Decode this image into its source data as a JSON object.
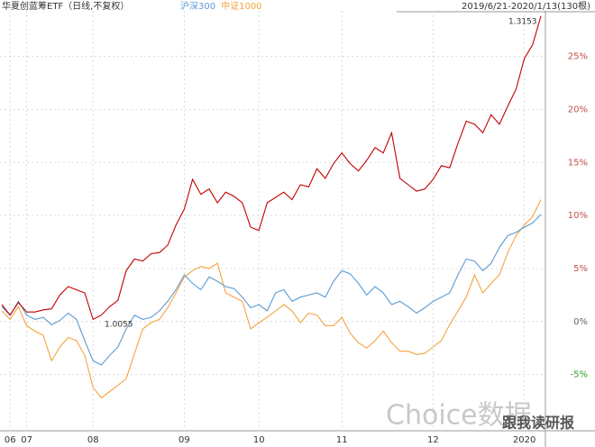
{
  "chart_data": {
    "type": "line",
    "title": "华夏创蓝筹ETF（日线,不复权）",
    "date_range": "2019/6/21-2020/1/13(130根)",
    "annotations": [
      "1.3153",
      "1.0055"
    ],
    "watermarks": [
      "Choice数据",
      "跟我读研报"
    ],
    "categories": [
      null,
      "06",
      null,
      "07",
      null,
      null,
      null,
      null,
      null,
      null,
      null,
      "08",
      null,
      null,
      null,
      null,
      null,
      null,
      null,
      null,
      null,
      null,
      "09",
      null,
      null,
      null,
      null,
      null,
      null,
      null,
      null,
      "10",
      null,
      null,
      null,
      null,
      null,
      null,
      null,
      null,
      null,
      "11",
      null,
      null,
      null,
      null,
      null,
      null,
      null,
      null,
      null,
      null,
      "12",
      null,
      null,
      null,
      null,
      null,
      null,
      null,
      null,
      null,
      null,
      "2020",
      null,
      null
    ],
    "series": [
      {
        "name": "华夏创蓝筹ETF",
        "color": "#c00000",
        "values": [
          1.6,
          0.6,
          1.8,
          0.9,
          0.9,
          1.1,
          1.2,
          2.5,
          3.3,
          3.0,
          2.7,
          0.2,
          0.6,
          1.4,
          2.0,
          4.8,
          5.9,
          5.7,
          6.4,
          6.5,
          7.2,
          9.1,
          10.6,
          13.4,
          12.0,
          12.5,
          11.2,
          12.2,
          11.8,
          11.2,
          8.9,
          8.6,
          11.2,
          11.7,
          12.2,
          11.5,
          12.9,
          12.7,
          14.4,
          13.5,
          14.9,
          15.9,
          14.9,
          14.2,
          15.2,
          16.4,
          15.9,
          17.8,
          13.5,
          12.9,
          12.3,
          12.5,
          13.4,
          14.7,
          14.5,
          16.8,
          18.9,
          18.6,
          17.8,
          19.5,
          18.6,
          20.3,
          21.9,
          24.8,
          26.1,
          28.8
        ]
      },
      {
        "name": "沪深300",
        "color": "#5b9bd5",
        "values": [
          1.4,
          0.6,
          1.9,
          0.6,
          0.2,
          0.4,
          -0.3,
          0.1,
          0.8,
          0.2,
          -1.8,
          -3.7,
          -4.1,
          -3.2,
          -2.4,
          -0.7,
          0.6,
          0.2,
          0.4,
          1.0,
          1.9,
          3.0,
          4.4,
          3.6,
          3.0,
          4.2,
          3.8,
          3.3,
          3.1,
          2.3,
          1.3,
          1.6,
          1.0,
          2.7,
          3.0,
          1.9,
          2.3,
          2.5,
          2.7,
          2.3,
          3.8,
          4.8,
          4.5,
          3.6,
          2.5,
          3.3,
          2.7,
          1.6,
          1.9,
          1.4,
          0.8,
          1.3,
          1.9,
          2.3,
          2.7,
          4.4,
          5.9,
          5.7,
          4.8,
          5.5,
          7.0,
          8.1,
          8.4,
          8.9,
          9.3,
          10.1
        ]
      },
      {
        "name": "中证1000",
        "color": "#f5a340",
        "values": [
          1.0,
          0.2,
          1.4,
          -0.4,
          -0.9,
          -1.3,
          -3.7,
          -2.4,
          -1.5,
          -1.8,
          -3.2,
          -6.2,
          -7.2,
          -6.6,
          -6.0,
          -5.4,
          -3.0,
          -0.7,
          -0.1,
          0.2,
          1.3,
          2.7,
          4.2,
          4.8,
          5.2,
          5.0,
          5.5,
          2.7,
          2.3,
          1.9,
          -0.7,
          -0.1,
          0.4,
          1.0,
          1.6,
          1.0,
          -0.1,
          0.8,
          0.6,
          -0.4,
          -0.4,
          0.4,
          -1.1,
          -2.0,
          -2.5,
          -1.8,
          -0.9,
          -2.0,
          -2.8,
          -2.8,
          -3.1,
          -3.0,
          -2.4,
          -1.8,
          -0.3,
          1.0,
          2.3,
          4.4,
          2.7,
          3.6,
          4.4,
          6.5,
          8.1,
          9.1,
          9.9,
          11.5
        ]
      }
    ],
    "ylim": [
      -10.3,
      29.3
    ],
    "yticks": [
      {
        "value": -5,
        "label": "-5%"
      },
      {
        "value": 0,
        "label": "0%"
      },
      {
        "value": 5,
        "label": "5%"
      },
      {
        "value": 10,
        "label": "10%"
      },
      {
        "value": 15,
        "label": "15%"
      },
      {
        "value": 20,
        "label": "20%"
      },
      {
        "value": 25,
        "label": "25%"
      }
    ],
    "grid": true
  }
}
